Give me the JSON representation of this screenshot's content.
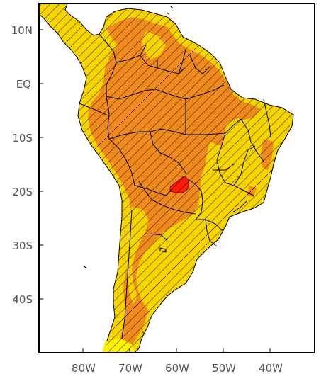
{
  "map": {
    "lat_labels": [
      "10N",
      "EQ",
      "10S",
      "20S",
      "30S",
      "40S"
    ],
    "lon_labels": [
      "80W",
      "70W",
      "60W",
      "50W",
      "40W"
    ],
    "colors": {
      "sea": "#ffffff",
      "yellow": "#f5d400",
      "light_yellow": "#fff200",
      "orange": "#f08a1c",
      "dark_orange": "#e8731a",
      "red": "#ff1a0a",
      "hatch": "#000000",
      "border": "#000000",
      "tick_text": "#555555"
    }
  }
}
